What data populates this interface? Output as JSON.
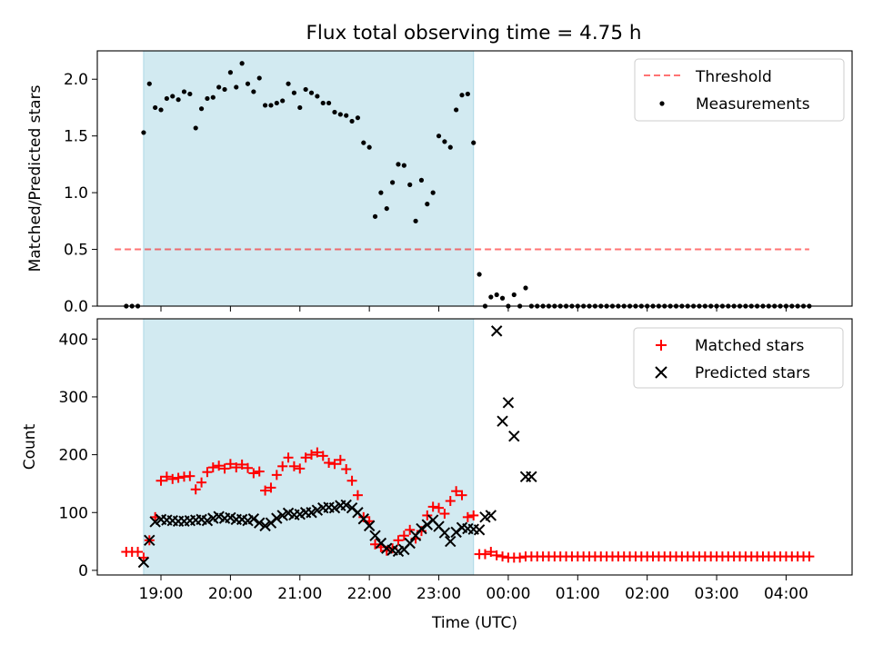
{
  "figure_title": "Flux total observing time = 4.75 h",
  "chart_data": [
    {
      "type": "scatter",
      "title": "Flux total observing time = 4.75 h",
      "ylabel": "Matched/Predicted stars",
      "xlabel": "",
      "xlim": [
        "18:05",
        "04:57"
      ],
      "ylim": [
        0,
        2.25
      ],
      "yticks": [
        0.0,
        0.5,
        1.0,
        1.5,
        2.0
      ],
      "ytick_labels": [
        "0.0",
        "0.5",
        "1.0",
        "1.5",
        "2.0"
      ],
      "shaded_interval": [
        "18:45",
        "23:30"
      ],
      "shaded_color": "#add8e6",
      "legend_position": "upper right",
      "series": [
        {
          "name": "Threshold",
          "type": "line",
          "style": "dashed",
          "color": "#ff0000",
          "x": [
            "18:20",
            "04:20"
          ],
          "y": [
            0.5,
            0.5
          ]
        },
        {
          "name": "Measurements",
          "type": "scatter",
          "color": "#000000",
          "x": [
            "18:30",
            "18:35",
            "18:40",
            "18:45",
            "18:50",
            "18:55",
            "19:00",
            "19:05",
            "19:10",
            "19:15",
            "19:20",
            "19:25",
            "19:30",
            "19:35",
            "19:40",
            "19:45",
            "19:50",
            "19:55",
            "20:00",
            "20:05",
            "20:10",
            "20:15",
            "20:20",
            "20:25",
            "20:30",
            "20:35",
            "20:40",
            "20:45",
            "20:50",
            "20:55",
            "21:00",
            "21:05",
            "21:10",
            "21:15",
            "21:20",
            "21:25",
            "21:30",
            "21:35",
            "21:40",
            "21:45",
            "21:50",
            "21:55",
            "22:00",
            "22:05",
            "22:10",
            "22:15",
            "22:20",
            "22:25",
            "22:30",
            "22:35",
            "22:40",
            "22:45",
            "22:50",
            "22:55",
            "23:00",
            "23:05",
            "23:10",
            "23:15",
            "23:20",
            "23:25",
            "23:30",
            "23:35",
            "23:40",
            "23:45",
            "23:50",
            "23:55",
            "00:00",
            "00:05",
            "00:10",
            "00:15",
            "00:20",
            "00:25",
            "00:30",
            "00:35",
            "00:40",
            "00:45",
            "00:50",
            "00:55",
            "01:00",
            "01:05",
            "01:10",
            "01:15",
            "01:20",
            "01:25",
            "01:30",
            "01:35",
            "01:40",
            "01:45",
            "01:50",
            "01:55",
            "02:00",
            "02:05",
            "02:10",
            "02:15",
            "02:20",
            "02:25",
            "02:30",
            "02:35",
            "02:40",
            "02:45",
            "02:50",
            "02:55",
            "03:00",
            "03:05",
            "03:10",
            "03:15",
            "03:20",
            "03:25",
            "03:30",
            "03:35",
            "03:40",
            "03:45",
            "03:50",
            "03:55",
            "04:00",
            "04:05",
            "04:10",
            "04:15",
            "04:20"
          ],
          "y": [
            0.0,
            0.0,
            0.0,
            1.53,
            1.96,
            1.75,
            1.73,
            1.83,
            1.85,
            1.82,
            1.89,
            1.87,
            1.57,
            1.74,
            1.83,
            1.84,
            1.93,
            1.91,
            2.06,
            1.93,
            2.14,
            1.96,
            1.89,
            2.01,
            1.77,
            1.77,
            1.79,
            1.81,
            1.96,
            1.88,
            1.75,
            1.91,
            1.88,
            1.85,
            1.79,
            1.79,
            1.71,
            1.69,
            1.68,
            1.63,
            1.66,
            1.44,
            1.4,
            0.79,
            1.0,
            0.86,
            1.09,
            1.25,
            1.24,
            1.07,
            0.75,
            1.11,
            0.9,
            1.0,
            1.5,
            1.45,
            1.4,
            1.73,
            1.86,
            1.87,
            1.44,
            0.28,
            0.0,
            0.08,
            0.1,
            0.07,
            0.0,
            0.1,
            0.0,
            0.16,
            0.0,
            0.0,
            0.0,
            0.0,
            0.0,
            0.0,
            0.0,
            0.0,
            0.0,
            0.0,
            0.0,
            0.0,
            0.0,
            0.0,
            0.0,
            0.0,
            0.0,
            0.0,
            0.0,
            0.0,
            0.0,
            0.0,
            0.0,
            0.0,
            0.0,
            0.0,
            0.0,
            0.0,
            0.0,
            0.0,
            0.0,
            0.0,
            0.0,
            0.0,
            0.0,
            0.0,
            0.0,
            0.0,
            0.0,
            0.0,
            0.0,
            0.0,
            0.0,
            0.0,
            0.0,
            0.0,
            0.0,
            0.0,
            0.0
          ]
        }
      ]
    },
    {
      "type": "scatter",
      "title": "",
      "ylabel": "Count",
      "xlabel": "Time (UTC)",
      "xlim": [
        "18:05",
        "04:57"
      ],
      "ylim": [
        -8,
        435
      ],
      "yticks": [
        0,
        100,
        200,
        300,
        400
      ],
      "ytick_labels": [
        "0",
        "100",
        "200",
        "300",
        "400"
      ],
      "xticks": [
        "19:00",
        "20:00",
        "21:00",
        "22:00",
        "23:00",
        "00:00",
        "01:00",
        "02:00",
        "03:00",
        "04:00"
      ],
      "xtick_labels": [
        "19:00",
        "20:00",
        "21:00",
        "22:00",
        "23:00",
        "00:00",
        "01:00",
        "02:00",
        "03:00",
        "04:00"
      ],
      "shaded_interval": [
        "18:45",
        "23:30"
      ],
      "shaded_color": "#add8e6",
      "legend_position": "upper right",
      "series": [
        {
          "name": "Matched stars",
          "type": "scatter",
          "marker": "+",
          "color": "#ff0000",
          "x": [
            "18:30",
            "18:35",
            "18:40",
            "18:45",
            "18:50",
            "18:55",
            "19:00",
            "19:05",
            "19:10",
            "19:15",
            "19:20",
            "19:25",
            "19:30",
            "19:35",
            "19:40",
            "19:45",
            "19:50",
            "19:55",
            "20:00",
            "20:05",
            "20:10",
            "20:15",
            "20:20",
            "20:25",
            "20:30",
            "20:35",
            "20:40",
            "20:45",
            "20:50",
            "20:55",
            "21:00",
            "21:05",
            "21:10",
            "21:15",
            "21:20",
            "21:25",
            "21:30",
            "21:35",
            "21:40",
            "21:45",
            "21:50",
            "21:55",
            "22:00",
            "22:05",
            "22:10",
            "22:15",
            "22:20",
            "22:25",
            "22:30",
            "22:35",
            "22:40",
            "22:45",
            "22:50",
            "22:55",
            "23:00",
            "23:05",
            "23:10",
            "23:15",
            "23:20",
            "23:25",
            "23:30",
            "23:35",
            "23:40",
            "23:45",
            "23:50",
            "23:55",
            "00:00",
            "00:05",
            "00:10",
            "00:15",
            "00:20",
            "00:25",
            "00:30",
            "00:35",
            "00:40",
            "00:45",
            "00:50",
            "00:55",
            "01:00",
            "01:05",
            "01:10",
            "01:15",
            "01:20",
            "01:25",
            "01:30",
            "01:35",
            "01:40",
            "01:45",
            "01:50",
            "01:55",
            "02:00",
            "02:05",
            "02:10",
            "02:15",
            "02:20",
            "02:25",
            "02:30",
            "02:35",
            "02:40",
            "02:45",
            "02:50",
            "02:55",
            "03:00",
            "03:05",
            "03:10",
            "03:15",
            "03:20",
            "03:25",
            "03:30",
            "03:35",
            "03:40",
            "03:45",
            "03:50",
            "03:55",
            "04:00",
            "04:05",
            "04:10",
            "04:15",
            "04:20"
          ],
          "y": [
            32,
            32,
            32,
            22,
            52,
            92,
            155,
            162,
            158,
            160,
            162,
            163,
            140,
            152,
            170,
            178,
            181,
            176,
            184,
            178,
            183,
            177,
            168,
            171,
            138,
            143,
            165,
            180,
            195,
            180,
            176,
            195,
            200,
            204,
            198,
            186,
            184,
            191,
            175,
            155,
            130,
            92,
            85,
            45,
            40,
            34,
            38,
            52,
            60,
            70,
            55,
            68,
            95,
            110,
            108,
            98,
            120,
            137,
            130,
            92,
            95,
            28,
            28,
            32,
            26,
            24,
            22,
            22,
            22,
            24,
            24,
            24,
            24,
            24,
            24,
            24,
            24,
            24,
            24,
            24,
            24,
            24,
            24,
            24,
            24,
            24,
            24,
            24,
            24,
            24,
            24,
            24,
            24,
            24,
            24,
            24,
            24,
            24,
            24,
            24,
            24,
            24,
            24,
            24,
            24,
            24,
            24,
            24,
            24,
            24,
            24,
            24,
            24,
            24,
            24,
            24,
            24,
            24,
            24
          ]
        },
        {
          "name": "Predicted stars",
          "type": "scatter",
          "marker": "x",
          "color": "#000000",
          "x": [
            "18:45",
            "18:50",
            "18:55",
            "19:00",
            "19:05",
            "19:10",
            "19:15",
            "19:20",
            "19:25",
            "19:30",
            "19:35",
            "19:40",
            "19:45",
            "19:50",
            "19:55",
            "20:00",
            "20:05",
            "20:10",
            "20:15",
            "20:20",
            "20:25",
            "20:30",
            "20:35",
            "20:40",
            "20:45",
            "20:50",
            "20:55",
            "21:00",
            "21:05",
            "21:10",
            "21:15",
            "21:20",
            "21:25",
            "21:30",
            "21:35",
            "21:40",
            "21:45",
            "21:50",
            "21:55",
            "22:00",
            "22:05",
            "22:10",
            "22:15",
            "22:20",
            "22:25",
            "22:30",
            "22:35",
            "22:40",
            "22:45",
            "22:50",
            "22:55",
            "23:00",
            "23:05",
            "23:10",
            "23:15",
            "23:20",
            "23:25",
            "23:30",
            "23:35",
            "23:40",
            "23:45",
            "23:50",
            "23:55",
            "00:00",
            "00:05",
            "00:15",
            "00:20"
          ],
          "y": [
            14,
            52,
            84,
            88,
            87,
            86,
            85,
            85,
            86,
            87,
            88,
            86,
            90,
            93,
            90,
            91,
            88,
            88,
            86,
            89,
            82,
            77,
            82,
            90,
            95,
            99,
            96,
            97,
            100,
            100,
            104,
            108,
            109,
            108,
            112,
            113,
            108,
            100,
            89,
            77,
            60,
            47,
            38,
            35,
            33,
            36,
            47,
            60,
            72,
            79,
            87,
            76,
            65,
            50,
            66,
            74,
            72,
            71,
            70,
            92,
            95,
            414,
            258,
            290,
            232,
            162,
            162
          ]
        }
      ]
    }
  ]
}
